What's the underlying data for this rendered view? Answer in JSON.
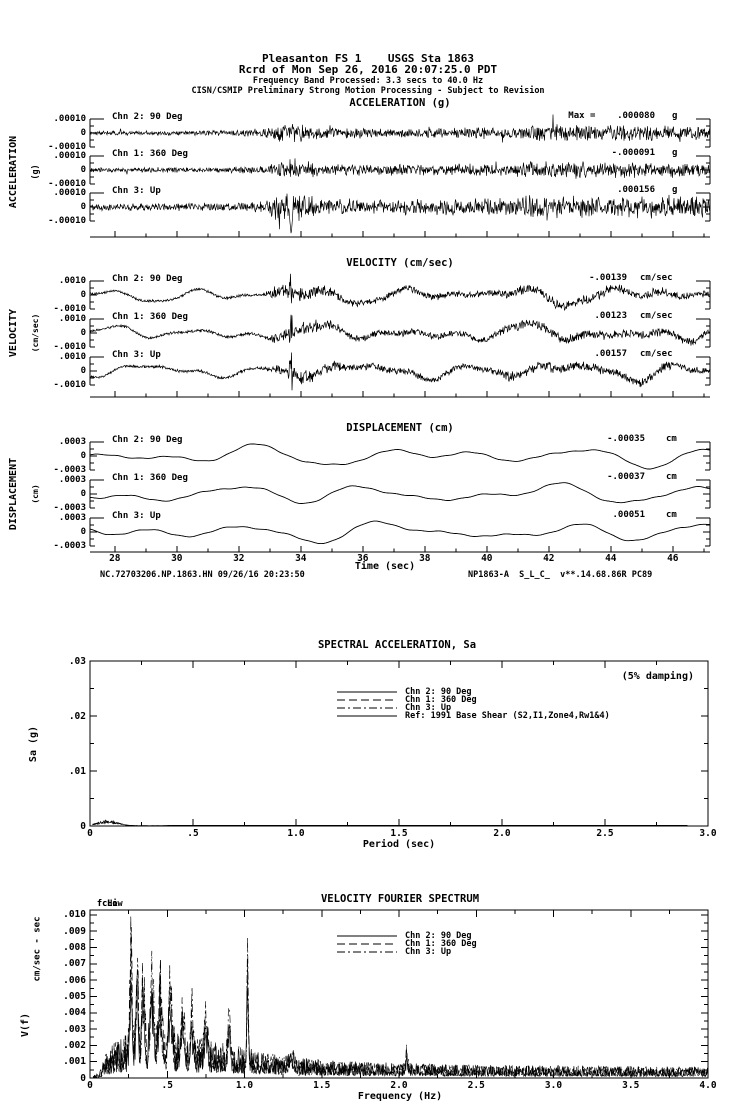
{
  "colors": {
    "ink": "#000000",
    "paper": "#ffffff"
  },
  "header": {
    "line1": "Pleasanton FS 1    USGS Sta 1863",
    "line2": "Rcrd of Mon Sep 26, 2016 20:07:25.0 PDT",
    "line3": "Frequency Band Processed: 3.3 secs to 40.0 Hz",
    "line4": "CISN/CSMIP Preliminary Strong Motion Processing - Subject to Revision"
  },
  "footer": {
    "left": "NC.72703206.NP.1863.HN 09/26/16 20:23:50",
    "right": "NP1863-A  S_L_C_  v**.14.68.86R PC89"
  },
  "chart_data": [
    {
      "type": "line",
      "id": "acceleration-time-series",
      "title": "ACCELERATION (g)",
      "ylabel": "ACCELERATION",
      "yunits": "(g)",
      "xlim": [
        27.2,
        47.2
      ],
      "x_ticks": [
        28,
        30,
        32,
        34,
        36,
        38,
        40,
        42,
        44,
        46
      ],
      "x_tick_labels_shown": false,
      "ytick_pos": ".00010",
      "ytick_zero": "0",
      "ytick_neg": "-.00010",
      "yscale_g": 0.0001,
      "traces": [
        {
          "label": "Chn 2: 90 Deg",
          "peak_label": "Max =    .000080",
          "peak_value": 8e-05,
          "units": "g"
        },
        {
          "label": "Chn 1: 360 Deg",
          "peak_label": "-.000091",
          "peak_value": -9.1e-05,
          "units": "g"
        },
        {
          "label": "Chn 3: Up",
          "peak_label": ".000156",
          "peak_value": 0.000156,
          "units": "g"
        }
      ],
      "waveform": {
        "kind": "accel",
        "envelope": [
          [
            27.2,
            2.2
          ],
          [
            31.5,
            2.6
          ],
          [
            32.8,
            4
          ],
          [
            33.3,
            9
          ],
          [
            33.8,
            11
          ],
          [
            34.6,
            6
          ],
          [
            36,
            5
          ],
          [
            40.5,
            5.5
          ],
          [
            41.5,
            8
          ],
          [
            44,
            7.5
          ],
          [
            46,
            7
          ],
          [
            47.2,
            6
          ]
        ],
        "burst_time": 33.68
      }
    },
    {
      "type": "line",
      "id": "velocity-time-series",
      "title": "VELOCITY (cm/sec)",
      "ylabel": "VELOCITY",
      "yunits": "(cm/sec)",
      "xlim": [
        27.2,
        47.2
      ],
      "x_ticks": [
        28,
        30,
        32,
        34,
        36,
        38,
        40,
        42,
        44,
        46
      ],
      "x_tick_labels_shown": false,
      "ytick_pos": ".0010",
      "ytick_zero": "0",
      "ytick_neg": "-.0010",
      "yscale_cms": 0.001,
      "traces": [
        {
          "label": "Chn 2: 90 Deg",
          "peak_label": "-.00139",
          "peak_value": -0.00139,
          "units": "cm/sec"
        },
        {
          "label": "Chn 1: 360 Deg",
          "peak_label": ".00123",
          "peak_value": 0.00123,
          "units": "cm/sec"
        },
        {
          "label": "Chn 3: Up",
          "peak_label": ".00157",
          "peak_value": 0.00157,
          "units": "cm/sec"
        }
      ],
      "waveform": {
        "kind": "vel",
        "hf_envelope": [
          [
            27.2,
            1.2
          ],
          [
            32.8,
            1.5
          ],
          [
            33.2,
            6
          ],
          [
            34.2,
            7
          ],
          [
            35.5,
            3.5
          ],
          [
            40,
            3
          ],
          [
            41,
            5
          ],
          [
            43.5,
            4.5
          ],
          [
            46,
            4
          ],
          [
            47.2,
            3.5
          ]
        ],
        "burst_time": 33.68
      }
    },
    {
      "type": "line",
      "id": "displacement-time-series",
      "title": "DISPLACEMENT (cm)",
      "ylabel": "DISPLACEMENT",
      "yunits": "(cm)",
      "xlabel": "Time (sec)",
      "xlim": [
        27.2,
        47.2
      ],
      "x_ticks": [
        28,
        30,
        32,
        34,
        36,
        38,
        40,
        42,
        44,
        46
      ],
      "x_tick_labels": [
        "28",
        "30",
        "32",
        "34",
        "36",
        "38",
        "40",
        "42",
        "44",
        "46"
      ],
      "x_tick_labels_shown": true,
      "ytick_pos": ".0003",
      "ytick_zero": "0",
      "ytick_neg": "-.0003",
      "yscale_cm": 0.0003,
      "traces": [
        {
          "label": "Chn 2: 90 Deg",
          "peak_label": "-.00035",
          "peak_value": -0.00035,
          "units": "cm"
        },
        {
          "label": "Chn 1: 360 Deg",
          "peak_label": "-.00037",
          "peak_value": -0.00037,
          "units": "cm"
        },
        {
          "label": "Chn 3: Up",
          "peak_label": ".00051",
          "peak_value": 0.00051,
          "units": "cm"
        }
      ],
      "waveform": {
        "kind": "disp"
      }
    },
    {
      "type": "line",
      "id": "spectral-acceleration",
      "title": "SPECTRAL ACCELERATION, Sa",
      "annotation": "(5% damping)",
      "ylabel": "Sa (g)",
      "xlabel": "Period (sec)",
      "xlim": [
        0,
        3.0
      ],
      "ylim": [
        0,
        0.03
      ],
      "x_tick_labels": [
        "0",
        ".5",
        "1.0",
        "1.5",
        "2.0",
        "2.5",
        "3.0"
      ],
      "y_tick_labels": [
        ".03",
        ".02",
        ".01",
        "0"
      ],
      "legend": [
        {
          "style": "solid",
          "label": "Chn 2: 90 Deg"
        },
        {
          "style": "dash",
          "label": "Chn 1: 360 Deg"
        },
        {
          "style": "dashdot",
          "label": "Chn 3: Up"
        },
        {
          "style": "solid",
          "label": "Ref: 1991 Base Shear (S2,I1,Zone4,Rw1&4)"
        }
      ],
      "series_note": "All three channel spectra hug zero; small bump ~0.0009 g at periods 0.03-0.3 sec; Ref curve off-scale",
      "bump": {
        "center": 0.085,
        "width": 0.065,
        "peak": 0.00095
      }
    },
    {
      "type": "line",
      "id": "velocity-fourier-spectrum",
      "title": "VELOCITY FOURIER SPECTRUM",
      "corner_labels": [
        "fcLow",
        "fcHi"
      ],
      "ylabel": "V(f)",
      "yunits": "cm/sec - sec",
      "xlabel": "Frequency (Hz)",
      "xlim": [
        0,
        4.0
      ],
      "ylim": [
        0,
        0.0103
      ],
      "x_tick_labels": [
        "0",
        ".5",
        "1.0",
        "1.5",
        "2.0",
        "2.5",
        "3.0",
        "3.5",
        "4.0"
      ],
      "y_tick_labels": [
        ".010",
        ".009",
        ".008",
        ".007",
        ".006",
        ".005",
        ".004",
        ".003",
        ".002",
        ".001",
        "0"
      ],
      "legend": [
        {
          "style": "solid",
          "label": "Chn 2: 90 Deg"
        },
        {
          "style": "dash",
          "label": "Chn 1: 360 Deg"
        },
        {
          "style": "dashdot",
          "label": "Chn 3: Up"
        }
      ],
      "floor": [
        [
          0,
          2e-05
        ],
        [
          0.06,
          0.0002
        ],
        [
          0.1,
          0.0009
        ],
        [
          0.15,
          0.0013
        ],
        [
          0.22,
          0.0016
        ],
        [
          0.3,
          0.0019
        ],
        [
          0.5,
          0.0019
        ],
        [
          0.7,
          0.0015
        ],
        [
          0.95,
          0.0013
        ],
        [
          1.1,
          0.001
        ],
        [
          1.3,
          0.0008
        ],
        [
          1.6,
          0.00065
        ],
        [
          2.0,
          0.00058
        ],
        [
          2.5,
          0.0005
        ],
        [
          3.0,
          0.00047
        ],
        [
          4.0,
          0.00042
        ]
      ],
      "peaks": [
        {
          "f": 0.265,
          "v": 0.0082,
          "w": 0.01
        },
        {
          "f": 0.305,
          "v": 0.0078,
          "w": 0.01
        },
        {
          "f": 0.345,
          "v": 0.0058,
          "w": 0.012
        },
        {
          "f": 0.4,
          "v": 0.005,
          "w": 0.015
        },
        {
          "f": 0.455,
          "v": 0.0046,
          "w": 0.014
        },
        {
          "f": 0.52,
          "v": 0.0042,
          "w": 0.015
        },
        {
          "f": 0.6,
          "v": 0.0033,
          "w": 0.015
        },
        {
          "f": 0.66,
          "v": 0.0035,
          "w": 0.01
        },
        {
          "f": 0.75,
          "v": 0.0028,
          "w": 0.014
        },
        {
          "f": 0.9,
          "v": 0.0032,
          "w": 0.01
        },
        {
          "f": 1.02,
          "v": 0.0072,
          "w": 0.007
        },
        {
          "f": 1.3,
          "v": 0.0009,
          "w": 0.02
        },
        {
          "f": 2.05,
          "v": 0.0015,
          "w": 0.008
        }
      ]
    }
  ]
}
